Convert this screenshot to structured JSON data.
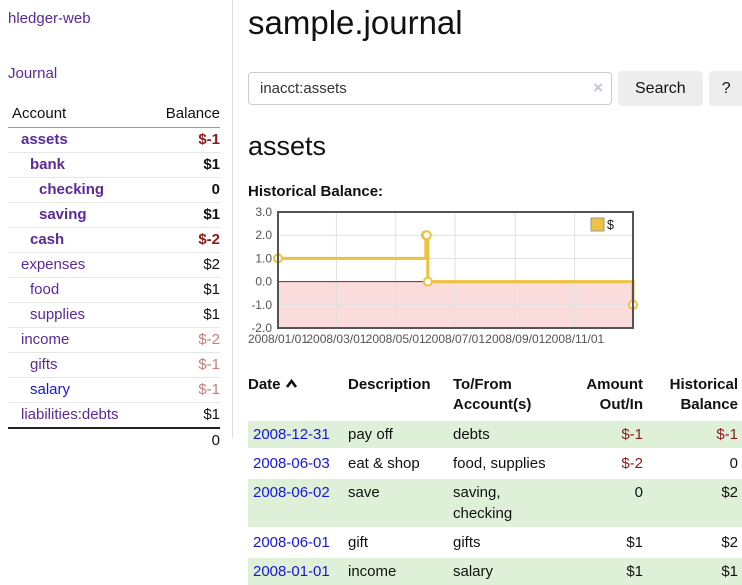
{
  "app": {
    "title": "hledger-web"
  },
  "sidebar": {
    "journal_label": "Journal",
    "accounts_table": {
      "headers": [
        "Account",
        "Balance"
      ],
      "rows": [
        {
          "name": "assets",
          "balance": "$-1"
        },
        {
          "name": "bank",
          "balance": "$1"
        },
        {
          "name": "checking",
          "balance": "0"
        },
        {
          "name": "saving",
          "balance": "$1"
        },
        {
          "name": "cash",
          "balance": "$-2"
        },
        {
          "name": "expenses",
          "balance": "$2"
        },
        {
          "name": "food",
          "balance": "$1"
        },
        {
          "name": "supplies",
          "balance": "$1"
        },
        {
          "name": "income",
          "balance": "$-2"
        },
        {
          "name": "gifts",
          "balance": "$-1"
        },
        {
          "name": "salary",
          "balance": "$-1"
        },
        {
          "name": "liabilities:debts",
          "balance": "$1"
        }
      ],
      "total": "0"
    }
  },
  "header": {
    "title": "sample.journal"
  },
  "search": {
    "value": "inacct:assets",
    "clear_icon": "×",
    "button_label": "Search",
    "help_label": "?"
  },
  "main": {
    "account_heading": "assets",
    "chart_label": "Historical Balance:"
  },
  "chart_data": {
    "type": "line",
    "step": true,
    "series": [
      {
        "name": "$",
        "color": "#edc240",
        "points": [
          [
            "2008/01/01",
            1
          ],
          [
            "2008/06/01",
            2
          ],
          [
            "2008/06/02",
            2
          ],
          [
            "2008/06/03",
            0
          ],
          [
            "2008/12/31",
            -1
          ]
        ]
      }
    ],
    "xlim": [
      "2008/01/01",
      "2008/12/31"
    ],
    "ylim": [
      -2,
      3
    ],
    "x_ticks": [
      "2008/01/01",
      "2008/03/01",
      "2008/05/01",
      "2008/07/01",
      "2008/09/01",
      "2008/11/01"
    ],
    "y_ticks": [
      3,
      2,
      1,
      0,
      -1,
      -2
    ],
    "grid": true,
    "legend_position": "top-right",
    "colors": {
      "grid": "#e0e0e0",
      "zero_line": "#8f1f1f",
      "negative_band": "#fbdcdc",
      "border": "#545454",
      "tick_text": "#545454",
      "marker_fill": "#ffffff"
    }
  },
  "register": {
    "headers": [
      "Date",
      "Description",
      "To/From Account(s)",
      "Amount Out/In",
      "Historical Balance"
    ],
    "rows": [
      {
        "date": "2008-12-31",
        "description": "pay off",
        "accounts": "debts",
        "amount": "$-1",
        "balance": "$-1"
      },
      {
        "date": "2008-06-03",
        "description": "eat & shop",
        "accounts": "food, supplies",
        "amount": "$-2",
        "balance": "0"
      },
      {
        "date": "2008-06-02",
        "description": "save",
        "accounts": "saving, checking",
        "amount": "0",
        "balance": "$2"
      },
      {
        "date": "2008-06-01",
        "description": "gift",
        "accounts": "gifts",
        "amount": "$1",
        "balance": "$2"
      },
      {
        "date": "2008-01-01",
        "description": "income",
        "accounts": "salary",
        "amount": "$1",
        "balance": "$1"
      }
    ]
  },
  "colors": {
    "purple_link": "#5b2a9a",
    "blue_link": "#1616d9",
    "negative_strong": "#8b1a1a",
    "negative_soft": "#c1807f",
    "row_highlight": "#dff0d8"
  }
}
